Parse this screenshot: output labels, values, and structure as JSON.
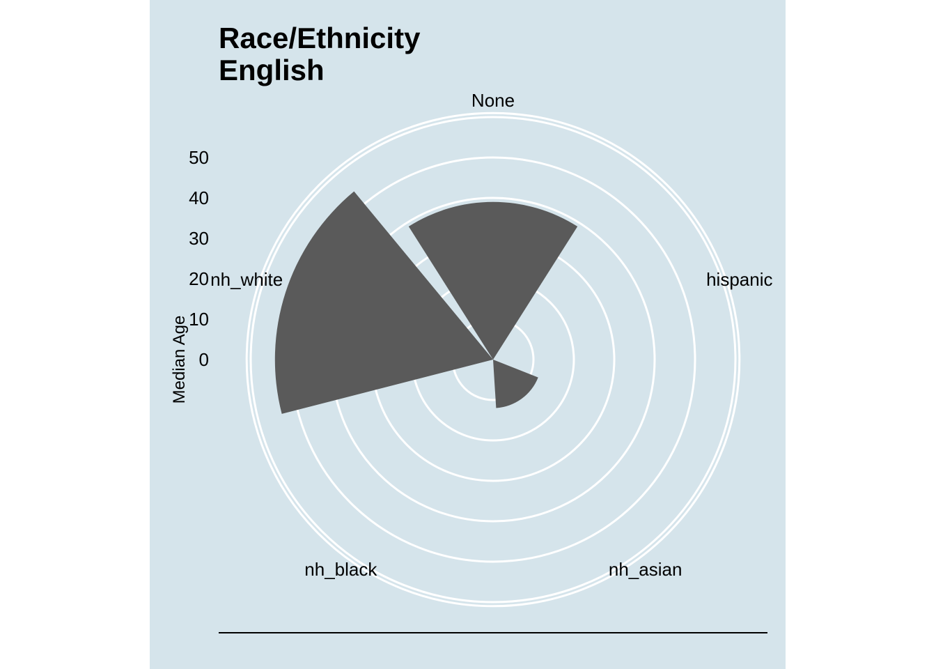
{
  "chart_data": {
    "type": "bar",
    "coord": "polar",
    "title": "Race/Ethnicity",
    "subtitle": "English",
    "ylabel": "Median Age",
    "categories": [
      "None",
      "hispanic",
      "nh_asian",
      "nh_black",
      "nh_white"
    ],
    "values": [
      39,
      0,
      12,
      0,
      54
    ],
    "y_ticks": [
      0,
      10,
      20,
      30,
      40,
      50
    ],
    "ylim": [
      0,
      61
    ],
    "grid": true,
    "colors": {
      "panel_background": "#d5e4eb",
      "bar_fill": "#5a5a5a",
      "grid_line": "#ffffff"
    }
  }
}
